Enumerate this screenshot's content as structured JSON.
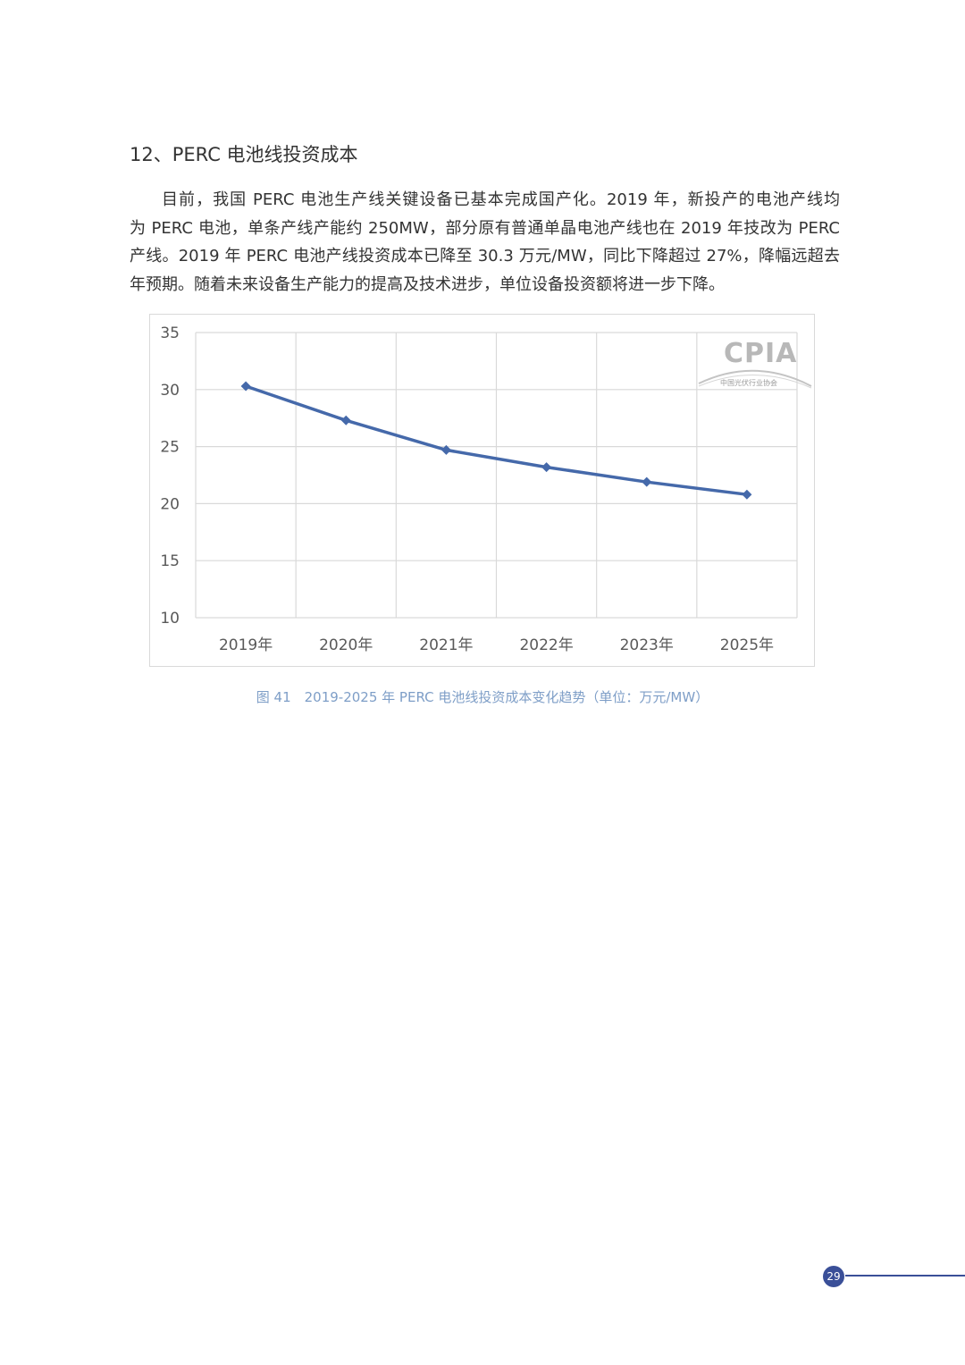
{
  "section": {
    "heading": "12、PERC 电池线投资成本"
  },
  "paragraph": {
    "lines": [
      "目前，我国 PERC 电池生产线关键设备已基本完成国产化。2019 年，新投产的电池产线均",
      "为 PERC 电池，单条产线产能约 250MW，部分原有普通单晶电池产线也在 2019 年技改为 PERC",
      "产线。2019 年 PERC 电池产线投资成本已降至 30.3 万元/MW，同比下降超过 27%，降幅远超去",
      "年预期。随着未来设备生产能力的提高及技术进步，单位设备投资额将进一步下降。"
    ]
  },
  "watermark": {
    "logo_text": "CPIA",
    "org_name": "中国光伏行业协会"
  },
  "chart_data": {
    "type": "line",
    "categories": [
      "2019年",
      "2020年",
      "2021年",
      "2022年",
      "2023年",
      "2025年"
    ],
    "series": [
      {
        "values": [
          30.3,
          27.3,
          24.7,
          23.2,
          21.9,
          20.8
        ],
        "color": "#4569aa"
      }
    ],
    "ylim": [
      10,
      35
    ],
    "yticks": [
      10,
      15,
      20,
      25,
      30,
      35
    ],
    "grid": true,
    "title": "",
    "xlabel": "",
    "ylabel": ""
  },
  "figure": {
    "caption": "图 41　2019-2025 年 PERC 电池线投资成本变化趋势（单位：万元/MW）"
  },
  "footer": {
    "page_number": "29"
  }
}
